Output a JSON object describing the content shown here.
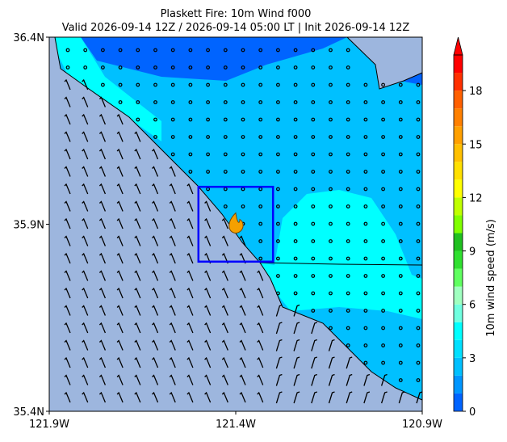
{
  "chart_data": {
    "type": "map",
    "title": [
      "Plaskett Fire: 10m Wind f000",
      "Valid 2026-09-14 12Z / 2026-09-14 05:00 LT | Init 2026-09-14 12Z"
    ],
    "xlim": [
      -121.9,
      -120.9
    ],
    "xticks": [
      {
        "value": -121.9,
        "label": "121.9W"
      },
      {
        "value": -121.4,
        "label": "121.4W"
      },
      {
        "value": -120.9,
        "label": "120.9W"
      }
    ],
    "ylim": [
      35.4,
      36.4
    ],
    "yticks": [
      {
        "value": 35.4,
        "label": "35.4N"
      },
      {
        "value": 35.9,
        "label": "35.9N"
      },
      {
        "value": 36.4,
        "label": "36.4N"
      }
    ],
    "box": {
      "lon": [
        -121.5,
        -121.3
      ],
      "lat": [
        35.8,
        36.0
      ],
      "color": "#0000ff"
    },
    "fire": {
      "lon": -121.4,
      "lat": 35.9
    },
    "colorbar": {
      "label": "10m wind speed (m/s)",
      "lim": [
        0,
        20
      ],
      "extend": "max",
      "ticks": [
        0,
        3,
        6,
        9,
        12,
        15,
        18
      ],
      "levels": [
        0,
        1,
        2,
        3,
        4,
        5,
        6,
        7,
        8,
        9,
        10,
        11,
        12,
        13,
        14,
        15,
        16,
        17,
        18,
        19,
        20
      ],
      "colors": [
        "#0064ff",
        "#0096ff",
        "#00c0ff",
        "#00e0ff",
        "#00ffff",
        "#70ffe0",
        "#a0ffc0",
        "#60ff60",
        "#30e030",
        "#20c020",
        "#80ff00",
        "#c0ff00",
        "#ffff00",
        "#ffe000",
        "#ffc000",
        "#ffa000",
        "#ff8000",
        "#ff6000",
        "#ff3000",
        "#ff0000"
      ]
    }
  }
}
